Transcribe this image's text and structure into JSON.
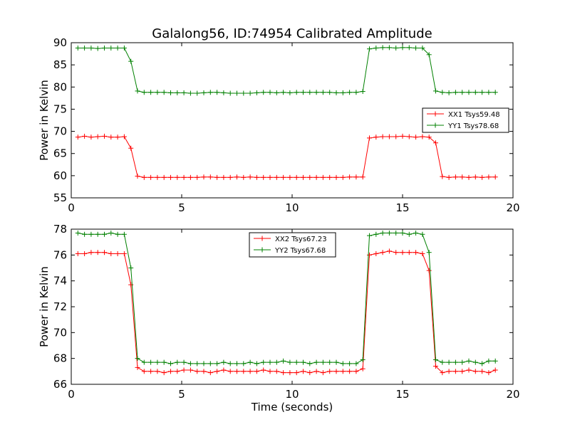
{
  "title": "Galalong56, ID:74954 Calibrated Amplitude",
  "chart_data": [
    {
      "type": "line",
      "ylabel": "Power in Kelvin",
      "xlabel": "",
      "xlim": [
        0,
        20
      ],
      "ylim": [
        55,
        90
      ],
      "xticks": [
        "0",
        "5",
        "10",
        "15",
        "20"
      ],
      "yticks": [
        "55",
        "60",
        "65",
        "70",
        "75",
        "80",
        "85",
        "90"
      ],
      "legend_position": "center-right",
      "series": [
        {
          "name": "XX1 Tsys59.48",
          "color": "#ff0000",
          "x": [
            0.3,
            0.6,
            0.9,
            1.2,
            1.5,
            1.8,
            2.1,
            2.4,
            2.7,
            3.0,
            3.3,
            3.6,
            3.9,
            4.2,
            4.5,
            4.8,
            5.1,
            5.4,
            5.7,
            6.0,
            6.3,
            6.6,
            6.9,
            7.2,
            7.5,
            7.8,
            8.1,
            8.4,
            8.7,
            9.0,
            9.3,
            9.6,
            9.9,
            10.2,
            10.5,
            10.8,
            11.1,
            11.4,
            11.7,
            12.0,
            12.3,
            12.6,
            12.9,
            13.2,
            13.5,
            13.8,
            14.1,
            14.4,
            14.7,
            15.0,
            15.3,
            15.6,
            15.9,
            16.2,
            16.5,
            16.8,
            17.1,
            17.4,
            17.7,
            18.0,
            18.3,
            18.6,
            18.9,
            19.2
          ],
          "y": [
            68.7,
            68.9,
            68.7,
            68.8,
            68.9,
            68.7,
            68.7,
            68.8,
            66.2,
            59.9,
            59.6,
            59.6,
            59.6,
            59.6,
            59.6,
            59.6,
            59.6,
            59.6,
            59.6,
            59.7,
            59.7,
            59.6,
            59.6,
            59.6,
            59.7,
            59.6,
            59.7,
            59.6,
            59.6,
            59.6,
            59.6,
            59.6,
            59.6,
            59.6,
            59.6,
            59.6,
            59.6,
            59.6,
            59.6,
            59.6,
            59.6,
            59.7,
            59.7,
            59.7,
            68.5,
            68.7,
            68.8,
            68.8,
            68.8,
            68.9,
            68.8,
            68.7,
            68.8,
            68.7,
            67.4,
            59.8,
            59.6,
            59.7,
            59.7,
            59.6,
            59.7,
            59.6,
            59.7,
            59.7
          ]
        },
        {
          "name": "YY1 Tsys78.68",
          "color": "#008000",
          "x": [
            0.3,
            0.6,
            0.9,
            1.2,
            1.5,
            1.8,
            2.1,
            2.4,
            2.7,
            3.0,
            3.3,
            3.6,
            3.9,
            4.2,
            4.5,
            4.8,
            5.1,
            5.4,
            5.7,
            6.0,
            6.3,
            6.6,
            6.9,
            7.2,
            7.5,
            7.8,
            8.1,
            8.4,
            8.7,
            9.0,
            9.3,
            9.6,
            9.9,
            10.2,
            10.5,
            10.8,
            11.1,
            11.4,
            11.7,
            12.0,
            12.3,
            12.6,
            12.9,
            13.2,
            13.5,
            13.8,
            14.1,
            14.4,
            14.7,
            15.0,
            15.3,
            15.6,
            15.9,
            16.2,
            16.5,
            16.8,
            17.1,
            17.4,
            17.7,
            18.0,
            18.3,
            18.6,
            18.9,
            19.2
          ],
          "y": [
            88.8,
            88.8,
            88.8,
            88.7,
            88.8,
            88.8,
            88.8,
            88.8,
            85.8,
            79.1,
            78.8,
            78.8,
            78.8,
            78.8,
            78.7,
            78.7,
            78.7,
            78.6,
            78.6,
            78.7,
            78.8,
            78.8,
            78.7,
            78.6,
            78.6,
            78.6,
            78.6,
            78.7,
            78.8,
            78.8,
            78.7,
            78.8,
            78.7,
            78.8,
            78.8,
            78.8,
            78.8,
            78.8,
            78.8,
            78.7,
            78.7,
            78.8,
            78.8,
            79.0,
            88.6,
            88.8,
            88.9,
            88.9,
            88.8,
            88.9,
            88.9,
            88.8,
            88.8,
            87.3,
            79.1,
            78.8,
            78.7,
            78.8,
            78.8,
            78.8,
            78.8,
            78.8,
            78.8,
            78.8
          ]
        }
      ]
    },
    {
      "type": "line",
      "ylabel": "Power in Kelvin",
      "xlabel": "Time (seconds)",
      "xlim": [
        0,
        20
      ],
      "ylim": [
        66,
        78
      ],
      "xticks": [
        "0",
        "5",
        "10",
        "15",
        "20"
      ],
      "yticks": [
        "66",
        "68",
        "70",
        "72",
        "74",
        "76",
        "78"
      ],
      "legend_position": "upper-center",
      "series": [
        {
          "name": "XX2 Tsys67.23",
          "color": "#ff0000",
          "x": [
            0.3,
            0.6,
            0.9,
            1.2,
            1.5,
            1.8,
            2.1,
            2.4,
            2.7,
            3.0,
            3.3,
            3.6,
            3.9,
            4.2,
            4.5,
            4.8,
            5.1,
            5.4,
            5.7,
            6.0,
            6.3,
            6.6,
            6.9,
            7.2,
            7.5,
            7.8,
            8.1,
            8.4,
            8.7,
            9.0,
            9.3,
            9.6,
            9.9,
            10.2,
            10.5,
            10.8,
            11.1,
            11.4,
            11.7,
            12.0,
            12.3,
            12.6,
            12.9,
            13.2,
            13.5,
            13.8,
            14.1,
            14.4,
            14.7,
            15.0,
            15.3,
            15.6,
            15.9,
            16.2,
            16.5,
            16.8,
            17.1,
            17.4,
            17.7,
            18.0,
            18.3,
            18.6,
            18.9,
            19.2
          ],
          "y": [
            76.1,
            76.1,
            76.2,
            76.2,
            76.2,
            76.1,
            76.1,
            76.1,
            73.7,
            67.3,
            67.0,
            67.0,
            67.0,
            66.9,
            67.0,
            67.0,
            67.1,
            67.1,
            67.0,
            67.0,
            66.9,
            67.0,
            67.1,
            67.0,
            67.0,
            67.0,
            67.0,
            67.0,
            67.1,
            67.0,
            67.0,
            66.9,
            66.9,
            66.9,
            67.0,
            66.9,
            67.0,
            66.9,
            67.0,
            67.0,
            67.0,
            67.0,
            67.0,
            67.2,
            76.0,
            76.1,
            76.2,
            76.3,
            76.2,
            76.2,
            76.2,
            76.2,
            76.1,
            74.8,
            67.4,
            66.9,
            67.0,
            67.0,
            67.0,
            67.1,
            67.0,
            67.0,
            66.9,
            67.1
          ]
        },
        {
          "name": "YY2 Tsys67.68",
          "color": "#008000",
          "x": [
            0.3,
            0.6,
            0.9,
            1.2,
            1.5,
            1.8,
            2.1,
            2.4,
            2.7,
            3.0,
            3.3,
            3.6,
            3.9,
            4.2,
            4.5,
            4.8,
            5.1,
            5.4,
            5.7,
            6.0,
            6.3,
            6.6,
            6.9,
            7.2,
            7.5,
            7.8,
            8.1,
            8.4,
            8.7,
            9.0,
            9.3,
            9.6,
            9.9,
            10.2,
            10.5,
            10.8,
            11.1,
            11.4,
            11.7,
            12.0,
            12.3,
            12.6,
            12.9,
            13.2,
            13.5,
            13.8,
            14.1,
            14.4,
            14.7,
            15.0,
            15.3,
            15.6,
            15.9,
            16.2,
            16.5,
            16.8,
            17.1,
            17.4,
            17.7,
            18.0,
            18.3,
            18.6,
            18.9,
            19.2
          ],
          "y": [
            77.7,
            77.6,
            77.6,
            77.6,
            77.6,
            77.7,
            77.6,
            77.6,
            75.0,
            68.0,
            67.7,
            67.7,
            67.7,
            67.7,
            67.6,
            67.7,
            67.7,
            67.6,
            67.6,
            67.6,
            67.6,
            67.6,
            67.7,
            67.6,
            67.6,
            67.6,
            67.7,
            67.6,
            67.7,
            67.7,
            67.7,
            67.8,
            67.7,
            67.7,
            67.7,
            67.6,
            67.7,
            67.7,
            67.7,
            67.7,
            67.6,
            67.6,
            67.6,
            67.9,
            77.5,
            77.6,
            77.7,
            77.7,
            77.7,
            77.7,
            77.6,
            77.7,
            77.6,
            76.2,
            67.9,
            67.7,
            67.7,
            67.7,
            67.7,
            67.8,
            67.7,
            67.6,
            67.8,
            67.8
          ]
        }
      ]
    }
  ]
}
